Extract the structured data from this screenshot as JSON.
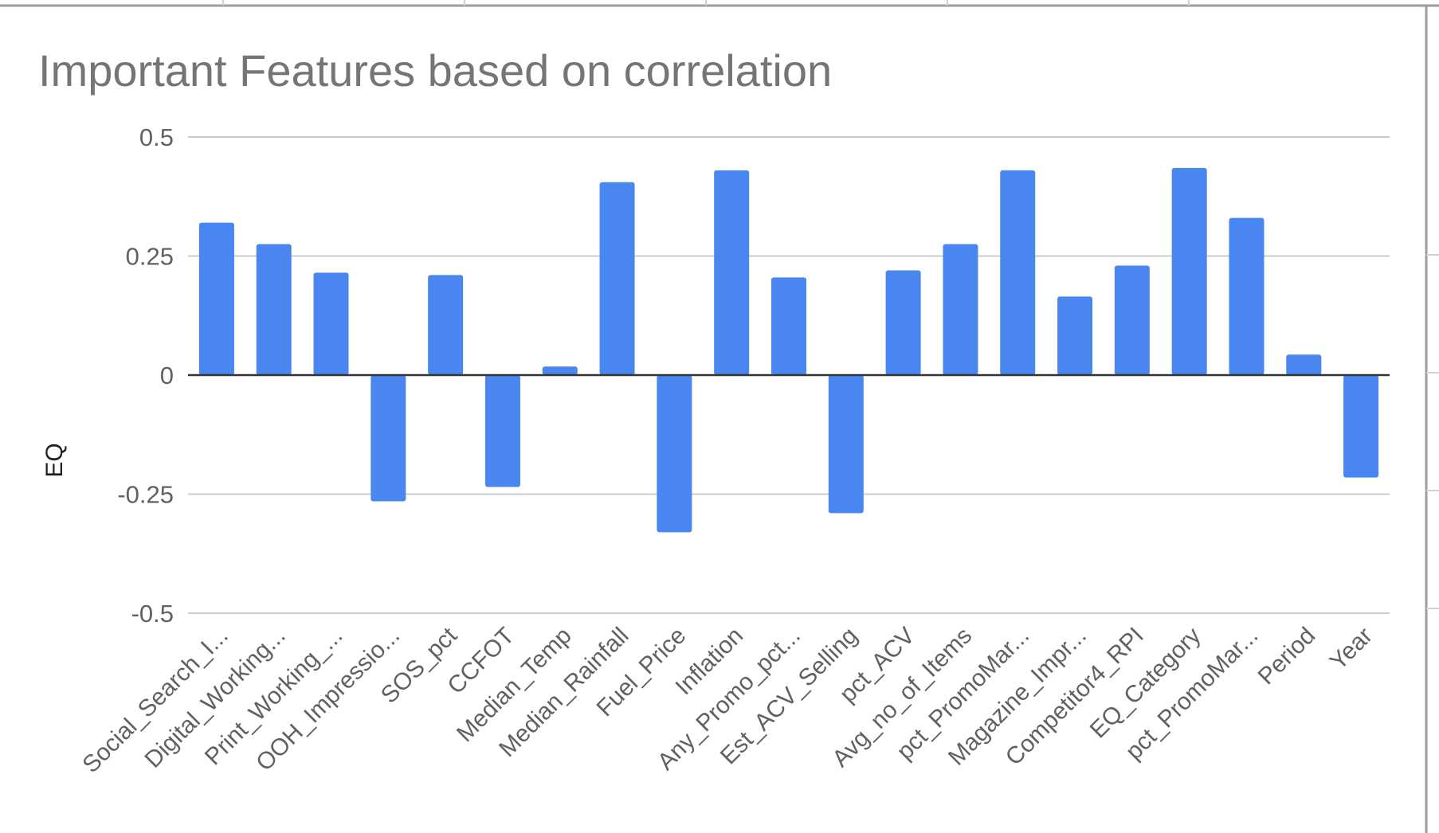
{
  "colors": {
    "bar": "#4a86f0",
    "grid": "#cccccc",
    "zero_line": "#333333",
    "title": "#757575",
    "tick_text": "#616161",
    "sheet_border": "#9e9e9e"
  },
  "chart_data": {
    "type": "bar",
    "title": "Important Features based on correlation",
    "xlabel": "",
    "ylabel": "EQ",
    "ylim": [
      -0.5,
      0.5
    ],
    "yticks": [
      "0.5",
      "0.25",
      "0",
      "-0.25",
      "-0.5"
    ],
    "grid": true,
    "legend": "none",
    "categories": [
      "Social_Search_I...",
      "Digital_Working...",
      "Print_Working_...",
      "OOH_Impressio...",
      "SOS_pct",
      "CCFOT",
      "Median_Temp",
      "Median_Rainfall",
      "Fuel_Price",
      "Inflation",
      "Any_Promo_pct...",
      "Est_ACV_Selling",
      "pct_ACV",
      "Avg_no_of_Items",
      "pct_PromoMar...",
      "Magazine_Impr...",
      "Competitor4_RPI",
      "EQ_Category",
      "pct_PromoMar...",
      "Period",
      "Year"
    ],
    "values": [
      0.32,
      0.275,
      0.215,
      -0.265,
      0.21,
      -0.235,
      0.018,
      0.405,
      -0.33,
      0.43,
      0.205,
      -0.29,
      0.22,
      0.275,
      0.43,
      0.165,
      0.23,
      0.435,
      0.33,
      0.043,
      -0.215
    ]
  }
}
